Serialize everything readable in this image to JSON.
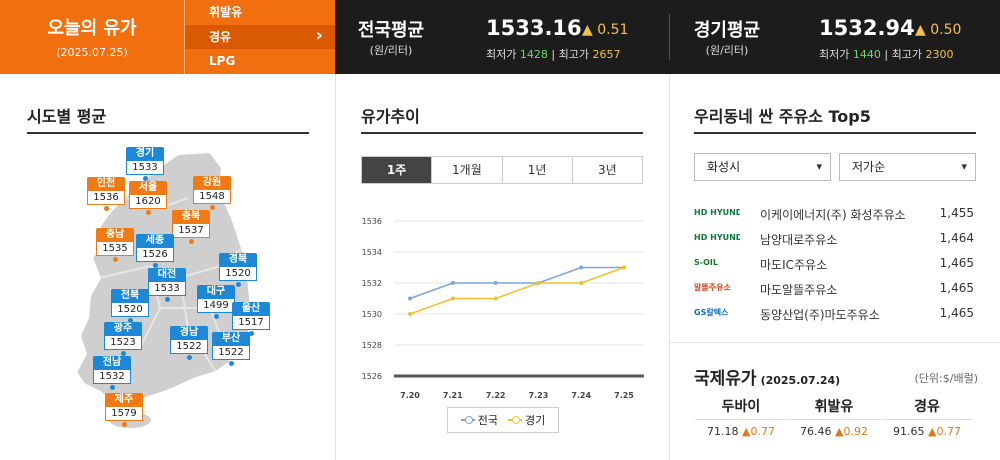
{
  "brand": {
    "title": "오늘의 유가",
    "date": "(2025.07.25)"
  },
  "fuel_menu": [
    "휘발유",
    "경유",
    "LPG"
  ],
  "fuel_selected": "경유",
  "national": {
    "name": "전국평균",
    "unit": "(원/리터)",
    "price": "1533.16",
    "change": "▲ 0.51",
    "min_label": "최저가",
    "min": "1428",
    "max_label": "최고가",
    "max": "2657"
  },
  "gyeonggi": {
    "name": "경기평균",
    "unit": "(원/리터)",
    "price": "1532.94",
    "change": "▲ 0.50",
    "min_label": "최저가",
    "min": "1440",
    "max_label": "최고가",
    "max": "2300"
  },
  "regions_title": "시도별 평균",
  "regions": [
    {
      "name": "경기",
      "value": "1533",
      "color": "b"
    },
    {
      "name": "인천",
      "value": "1536",
      "color": "o"
    },
    {
      "name": "서울",
      "value": "1620",
      "color": "o"
    },
    {
      "name": "강원",
      "value": "1548",
      "color": "o"
    },
    {
      "name": "충북",
      "value": "1537",
      "color": "o"
    },
    {
      "name": "충남",
      "value": "1535",
      "color": "o"
    },
    {
      "name": "세종",
      "value": "1526",
      "color": "b"
    },
    {
      "name": "경북",
      "value": "1520",
      "color": "b"
    },
    {
      "name": "대전",
      "value": "1533",
      "color": "b"
    },
    {
      "name": "전북",
      "value": "1520",
      "color": "b"
    },
    {
      "name": "대구",
      "value": "1499",
      "color": "b"
    },
    {
      "name": "울산",
      "value": "1517",
      "color": "b"
    },
    {
      "name": "광주",
      "value": "1523",
      "color": "b"
    },
    {
      "name": "경남",
      "value": "1522",
      "color": "b"
    },
    {
      "name": "부산",
      "value": "1522",
      "color": "b"
    },
    {
      "name": "전남",
      "value": "1532",
      "color": "b"
    },
    {
      "name": "제주",
      "value": "1579",
      "color": "o"
    }
  ],
  "trend_title": "유가추이",
  "trend_tabs": [
    "1주",
    "1개월",
    "1년",
    "3년"
  ],
  "trend_selected": "1주",
  "chart_data": {
    "type": "line",
    "x": [
      "7.20",
      "7.21",
      "7.22",
      "7.23",
      "7.24",
      "7.25"
    ],
    "series": [
      {
        "name": "전국",
        "color": "#7ea6d8",
        "values": [
          1531,
          1532,
          1532,
          1532,
          1533,
          1533
        ]
      },
      {
        "name": "경기",
        "color": "#f2c02e",
        "values": [
          1530,
          1531,
          1531,
          1532,
          1532,
          1533
        ]
      }
    ],
    "yticks": [
      "1536",
      "1534",
      "1532",
      "1530",
      "1528",
      "1526"
    ],
    "ylim": [
      1526,
      1536
    ],
    "grid": "horizontal",
    "legend": "bottom-center"
  },
  "cheap_title": "우리동네 싼 주유소 Top5",
  "region_select": "화성시",
  "sort_select": "저가순",
  "stations": [
    {
      "brand": "HD HYUNDAI OILBANK",
      "brand_color": "#0a7a3e",
      "name": "이케이에너지(주) 화성주유소",
      "price": "1,455"
    },
    {
      "brand": "HD HYUNDAI OILBANK",
      "brand_color": "#0a7a3e",
      "name": "남양대로주유소",
      "price": "1,464"
    },
    {
      "brand": "S-OIL",
      "brand_color": "#1a7a2a",
      "name": "마도IC주유소",
      "price": "1,465"
    },
    {
      "brand": "알뜰주유소",
      "brand_color": "#e0401c",
      "name": "마도알뜰주유소",
      "price": "1,465"
    },
    {
      "brand": "GS칼텍스",
      "brand_color": "#0b6fb5",
      "name": "동양산업(주)마도주유소",
      "price": "1,465"
    }
  ],
  "intl": {
    "title": "국제유가",
    "date": "(2025.07.24)",
    "unit": "(단위:$/배럴)",
    "items": [
      {
        "name": "두바이",
        "price": "71.18",
        "change": "▲0.77"
      },
      {
        "name": "휘발유",
        "price": "76.46",
        "change": "▲0.92"
      },
      {
        "name": "경유",
        "price": "91.65",
        "change": "▲0.77"
      }
    ]
  }
}
